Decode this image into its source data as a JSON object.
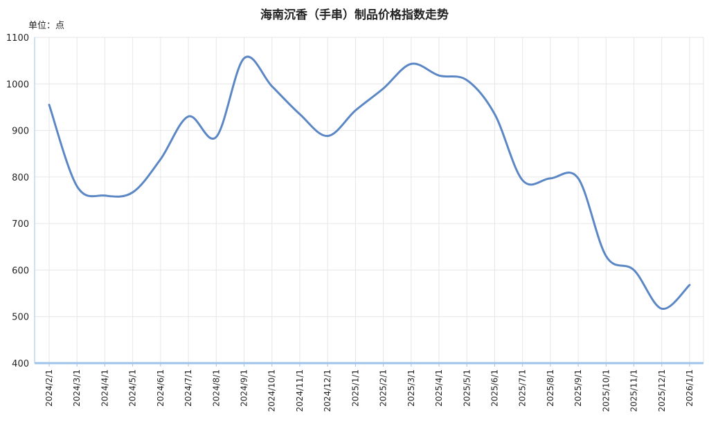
{
  "title": "海南沉香（手串）制品价格指数走势",
  "unit_label": "单位：点",
  "colors": {
    "line": "#5B87C5",
    "axis": "#9DC3EA",
    "grid": "#E6E6E6"
  },
  "chart_data": {
    "type": "line",
    "title": "海南沉香（手串）制品价格指数走势",
    "ylabel": "单位：点",
    "xlabel": "",
    "ylim": [
      400,
      1100
    ],
    "y_ticks": [
      400,
      500,
      600,
      700,
      800,
      900,
      1000,
      1100
    ],
    "grid": true,
    "categories": [
      "2024/2/1",
      "2024/3/1",
      "2024/4/1",
      "2024/5/1",
      "2024/6/1",
      "2024/7/1",
      "2024/8/1",
      "2024/9/1",
      "2024/10/1",
      "2024/11/1",
      "2024/12/1",
      "2025/1/1",
      "2025/2/1",
      "2025/3/1",
      "2025/4/1",
      "2025/5/1",
      "2025/6/1",
      "2025/7/1",
      "2025/8/1",
      "2025/9/1",
      "2025/10/1",
      "2025/11/1",
      "2025/12/1",
      "2026/1/1"
    ],
    "series": [
      {
        "values": [
          955,
          780,
          760,
          767,
          838,
          930,
          886,
          1055,
          995,
          935,
          888,
          943,
          990,
          1043,
          1018,
          1008,
          935,
          793,
          797,
          797,
          630,
          600,
          517,
          568
        ]
      }
    ]
  }
}
